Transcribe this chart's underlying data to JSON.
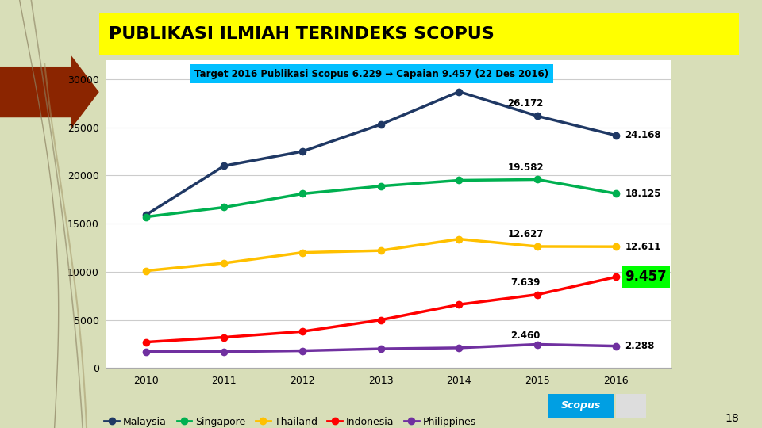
{
  "title": "PUBLIKASI ILMIAH TERINDEKS SCOPUS",
  "title_bg": "#FFFF00",
  "title_color": "#000000",
  "annotation_box_text": "Target 2016 Publikasi Scopus 6.229 → Capaian 9.457 (22 Des 2016)",
  "annotation_box_bg": "#00BFFF",
  "annotation_box_color": "#000000",
  "years": [
    2010,
    2011,
    2012,
    2013,
    2014,
    2015,
    2016
  ],
  "series": {
    "Malaysia": {
      "values": [
        15900,
        21000,
        22500,
        25300,
        28700,
        26172,
        24168
      ],
      "color": "#1F3864",
      "marker": "o",
      "label_2015": "26.172",
      "label_2016": "24.168"
    },
    "Singapore": {
      "values": [
        15700,
        16700,
        18100,
        18900,
        19500,
        19582,
        18125
      ],
      "color": "#00B050",
      "marker": "o",
      "label_2015": "19.582",
      "label_2016": "18.125"
    },
    "Thailand": {
      "values": [
        10100,
        10900,
        12000,
        12200,
        13400,
        12627,
        12611
      ],
      "color": "#FFC000",
      "marker": "o",
      "label_2015": "12.627",
      "label_2016": "12.611"
    },
    "Indonesia": {
      "values": [
        2700,
        3200,
        3800,
        5000,
        6600,
        7639,
        9457
      ],
      "color": "#FF0000",
      "marker": "o",
      "label_2015": "7.639",
      "label_2016": "9.457",
      "highlight_bg": "#00FF00"
    },
    "Philippines": {
      "values": [
        1700,
        1700,
        1800,
        2000,
        2100,
        2460,
        2288
      ],
      "color": "#7030A0",
      "marker": "o",
      "label_2015": "2.460",
      "label_2016": "2.288"
    }
  },
  "ylim": [
    0,
    32000
  ],
  "yticks": [
    0,
    5000,
    10000,
    15000,
    20000,
    25000,
    30000
  ],
  "chart_bg": "#FFFFFF",
  "slide_bg": "#D8DEB8",
  "page_number": "18",
  "scopus_badge_color": "#009FE3",
  "deco_color": "#8B2500",
  "series_order": [
    "Malaysia",
    "Singapore",
    "Thailand",
    "Indonesia",
    "Philippines"
  ]
}
